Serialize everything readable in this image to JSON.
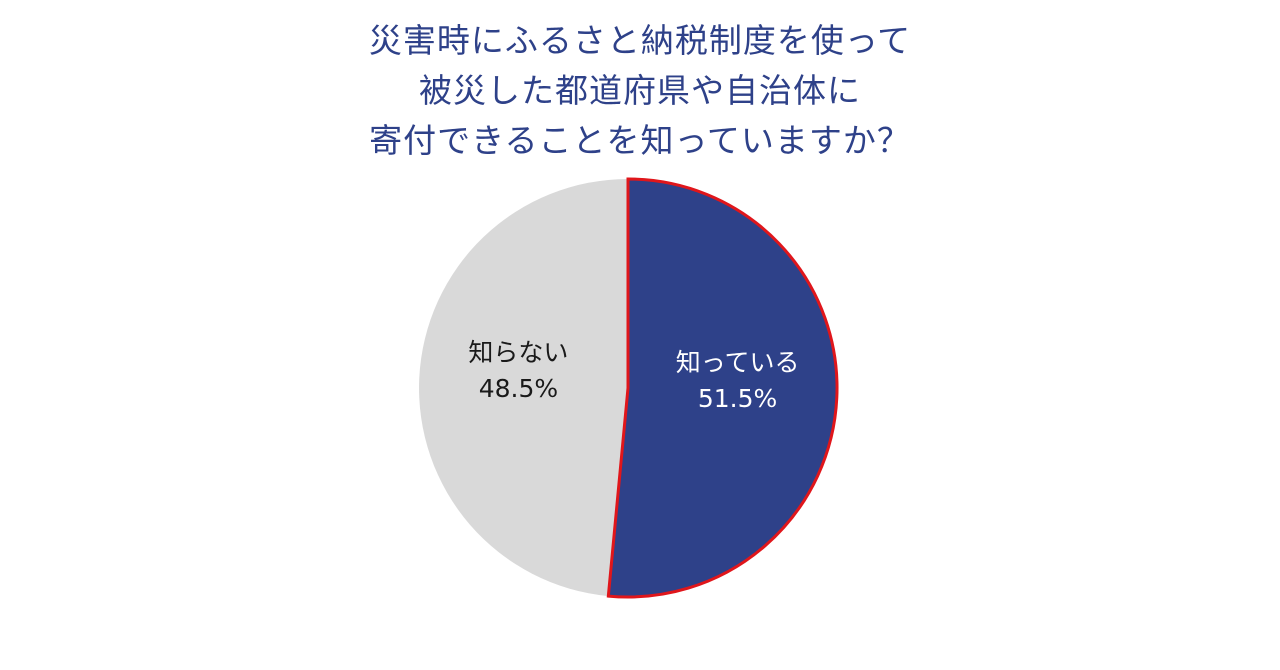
{
  "chart_data": {
    "type": "pie",
    "title_lines": [
      "災害時にふるさと納税制度を使って",
      "被災した都道府県や自治体に",
      "寄付できることを知っていますか？"
    ],
    "slices": [
      {
        "label": "知っている",
        "value": 51.5,
        "value_label": "51.5%",
        "color": "#2E4189",
        "label_color": "#ffffff",
        "highlight": true,
        "highlight_color": "#E0161B"
      },
      {
        "label": "知らない",
        "value": 48.5,
        "value_label": "48.5%",
        "color": "#D9D9D9",
        "label_color": "#1a1a1a",
        "highlight": false
      }
    ],
    "start_angle": "top",
    "direction": "clockwise"
  }
}
